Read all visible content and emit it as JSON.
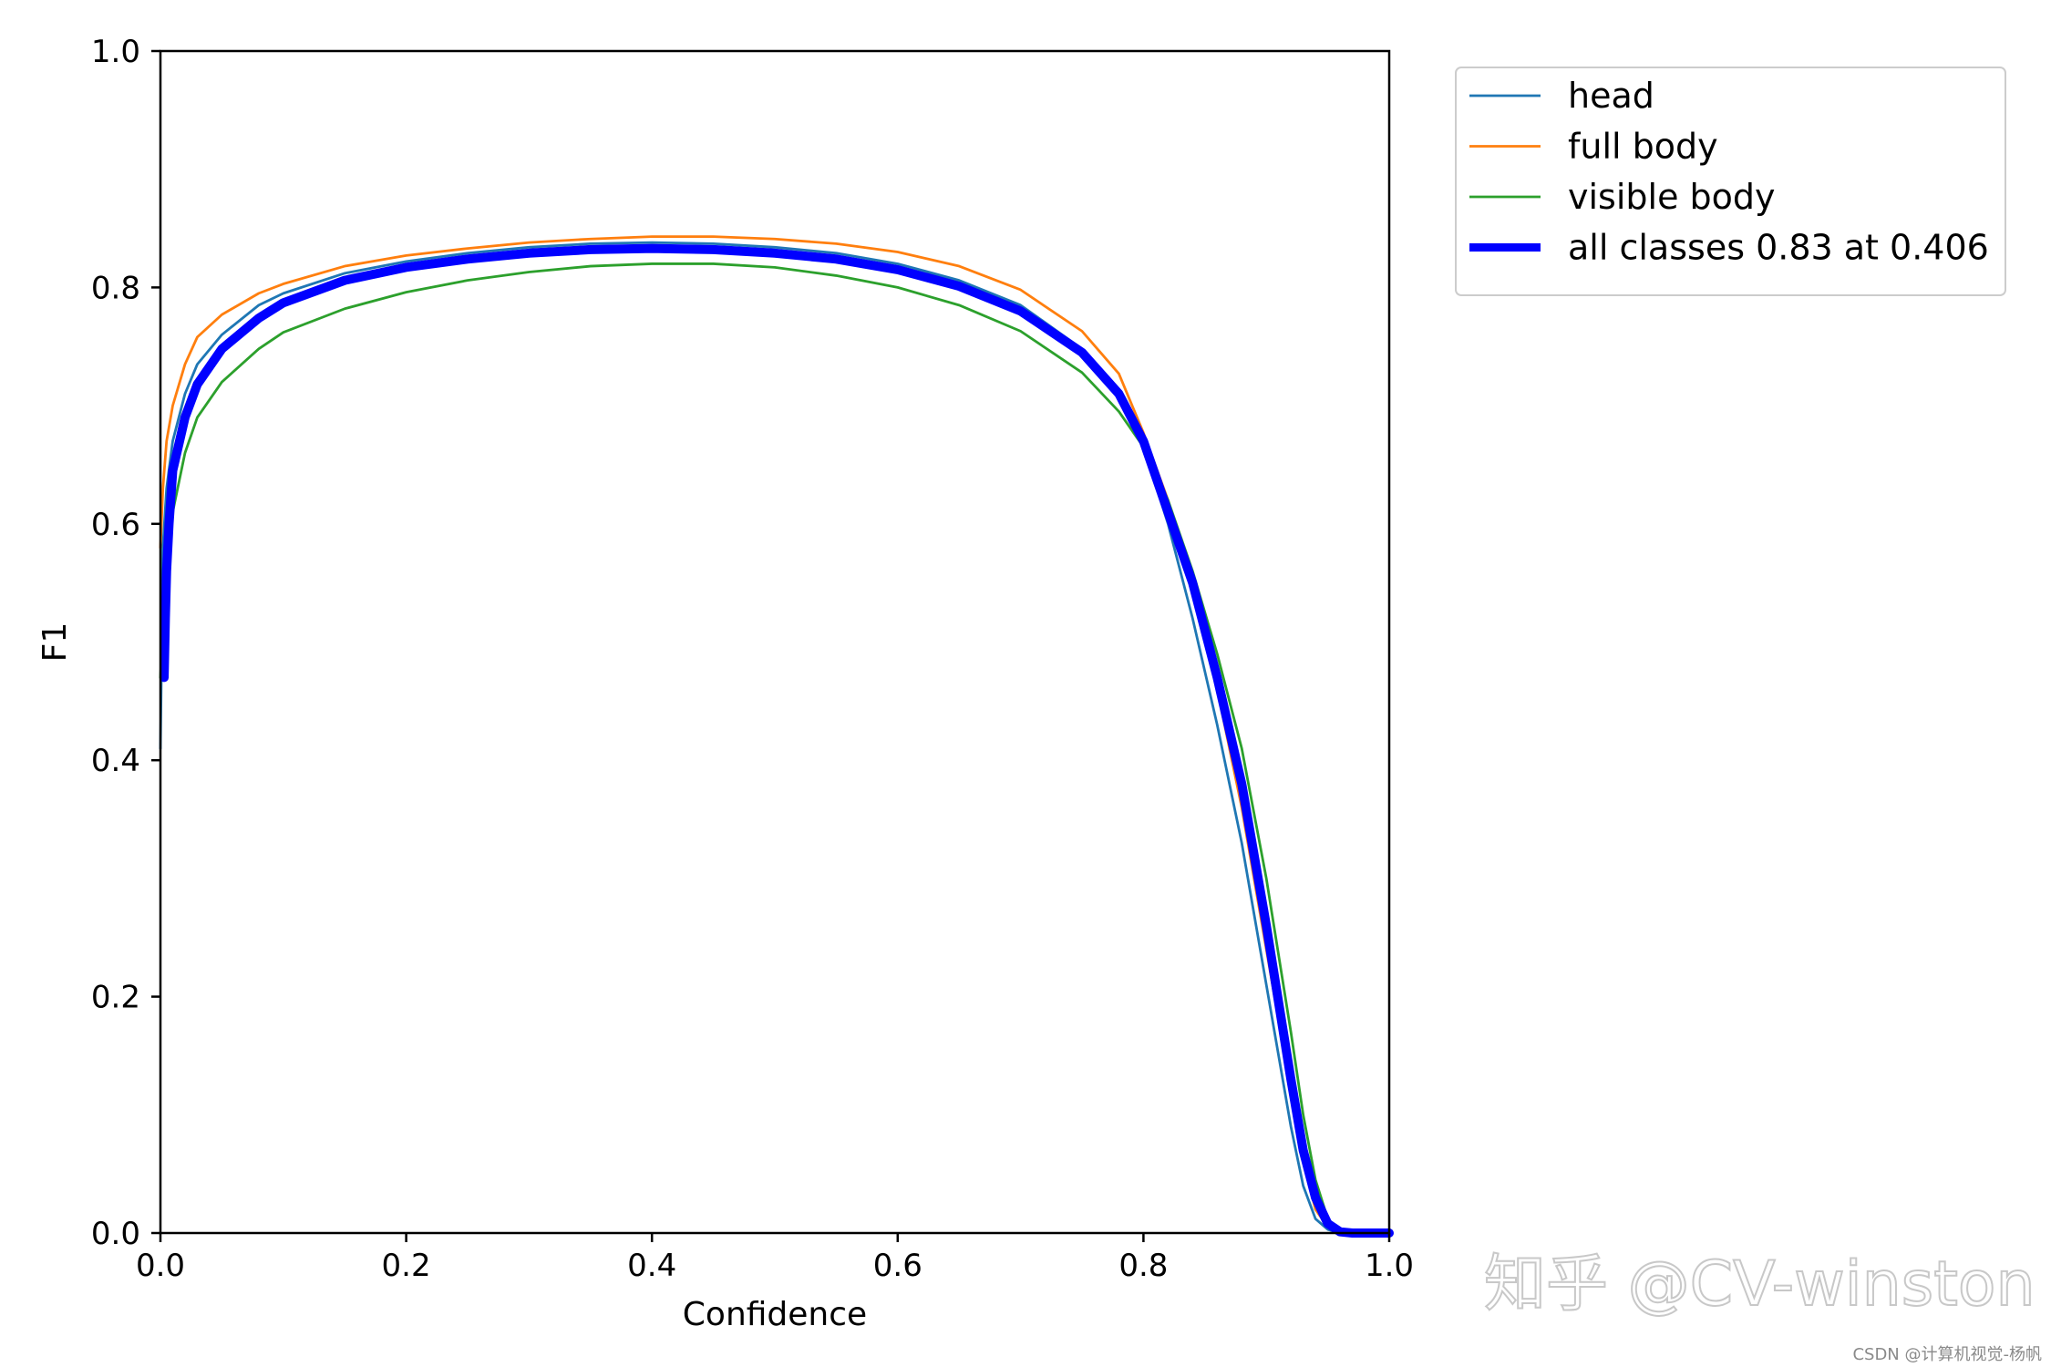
{
  "chart_data": {
    "type": "line",
    "xlabel": "Confidence",
    "ylabel": "F1",
    "xlim": [
      0,
      1
    ],
    "ylim": [
      0,
      1
    ],
    "x_ticks": [
      "0.0",
      "0.2",
      "0.4",
      "0.6",
      "0.8",
      "1.0"
    ],
    "y_ticks": [
      "0.0",
      "0.2",
      "0.4",
      "0.6",
      "0.8",
      "1.0"
    ],
    "grid": false,
    "legend_position": "outside-top-right",
    "series": [
      {
        "name": "head",
        "color": "#1f77b4",
        "line_weight": "thin",
        "x": [
          0.0,
          0.002,
          0.005,
          0.01,
          0.02,
          0.03,
          0.05,
          0.08,
          0.1,
          0.15,
          0.2,
          0.25,
          0.3,
          0.35,
          0.4,
          0.45,
          0.5,
          0.55,
          0.6,
          0.65,
          0.7,
          0.75,
          0.78,
          0.8,
          0.82,
          0.84,
          0.86,
          0.88,
          0.9,
          0.92,
          0.93,
          0.94,
          0.95,
          0.96,
          1.0
        ],
        "values": [
          0.41,
          0.58,
          0.63,
          0.67,
          0.71,
          0.735,
          0.76,
          0.785,
          0.795,
          0.812,
          0.822,
          0.829,
          0.834,
          0.837,
          0.838,
          0.837,
          0.834,
          0.829,
          0.82,
          0.806,
          0.785,
          0.748,
          0.712,
          0.665,
          0.6,
          0.52,
          0.43,
          0.33,
          0.21,
          0.09,
          0.04,
          0.012,
          0.003,
          0.0,
          0.0
        ]
      },
      {
        "name": "full body",
        "color": "#ff7f0e",
        "line_weight": "thin",
        "x": [
          0.0,
          0.002,
          0.005,
          0.01,
          0.02,
          0.03,
          0.05,
          0.08,
          0.1,
          0.15,
          0.2,
          0.25,
          0.3,
          0.35,
          0.4,
          0.45,
          0.5,
          0.55,
          0.6,
          0.65,
          0.7,
          0.75,
          0.78,
          0.8,
          0.82,
          0.84,
          0.86,
          0.88,
          0.9,
          0.92,
          0.93,
          0.94,
          0.95,
          0.96,
          0.97,
          1.0
        ],
        "values": [
          0.58,
          0.63,
          0.67,
          0.7,
          0.735,
          0.758,
          0.777,
          0.795,
          0.803,
          0.818,
          0.827,
          0.833,
          0.838,
          0.841,
          0.843,
          0.843,
          0.841,
          0.837,
          0.83,
          0.818,
          0.798,
          0.763,
          0.727,
          0.677,
          0.62,
          0.55,
          0.46,
          0.36,
          0.24,
          0.12,
          0.06,
          0.02,
          0.005,
          0.001,
          0.0,
          0.0
        ]
      },
      {
        "name": "visible body",
        "color": "#2ca02c",
        "line_weight": "thin",
        "x": [
          0.0,
          0.002,
          0.005,
          0.01,
          0.02,
          0.03,
          0.05,
          0.08,
          0.1,
          0.15,
          0.2,
          0.25,
          0.3,
          0.35,
          0.4,
          0.45,
          0.5,
          0.55,
          0.6,
          0.65,
          0.7,
          0.75,
          0.78,
          0.8,
          0.82,
          0.84,
          0.86,
          0.88,
          0.9,
          0.92,
          0.93,
          0.94,
          0.95,
          0.96,
          0.97,
          1.0
        ],
        "values": [
          0.47,
          0.52,
          0.57,
          0.61,
          0.66,
          0.69,
          0.72,
          0.748,
          0.762,
          0.782,
          0.796,
          0.806,
          0.813,
          0.818,
          0.82,
          0.82,
          0.817,
          0.81,
          0.8,
          0.785,
          0.763,
          0.728,
          0.695,
          0.665,
          0.62,
          0.56,
          0.49,
          0.41,
          0.3,
          0.17,
          0.1,
          0.045,
          0.012,
          0.002,
          0.0,
          0.0
        ]
      },
      {
        "name": "all classes 0.83 at 0.406",
        "color": "#0000ff",
        "line_weight": "thick",
        "x": [
          0.003,
          0.004,
          0.005,
          0.007,
          0.01,
          0.02,
          0.03,
          0.05,
          0.08,
          0.1,
          0.15,
          0.2,
          0.25,
          0.3,
          0.35,
          0.4,
          0.45,
          0.5,
          0.55,
          0.6,
          0.65,
          0.7,
          0.75,
          0.78,
          0.8,
          0.82,
          0.84,
          0.86,
          0.88,
          0.9,
          0.92,
          0.93,
          0.94,
          0.95,
          0.96,
          0.97,
          1.0
        ],
        "values": [
          0.47,
          0.52,
          0.56,
          0.6,
          0.645,
          0.69,
          0.718,
          0.748,
          0.774,
          0.787,
          0.806,
          0.817,
          0.824,
          0.829,
          0.832,
          0.833,
          0.832,
          0.829,
          0.824,
          0.815,
          0.801,
          0.78,
          0.745,
          0.71,
          0.67,
          0.61,
          0.55,
          0.47,
          0.38,
          0.26,
          0.13,
          0.07,
          0.03,
          0.008,
          0.001,
          0.0,
          0.0
        ]
      }
    ]
  },
  "watermark": {
    "main": "知乎 @CV-winston",
    "small": "CSDN @计算机视觉-杨帆"
  }
}
